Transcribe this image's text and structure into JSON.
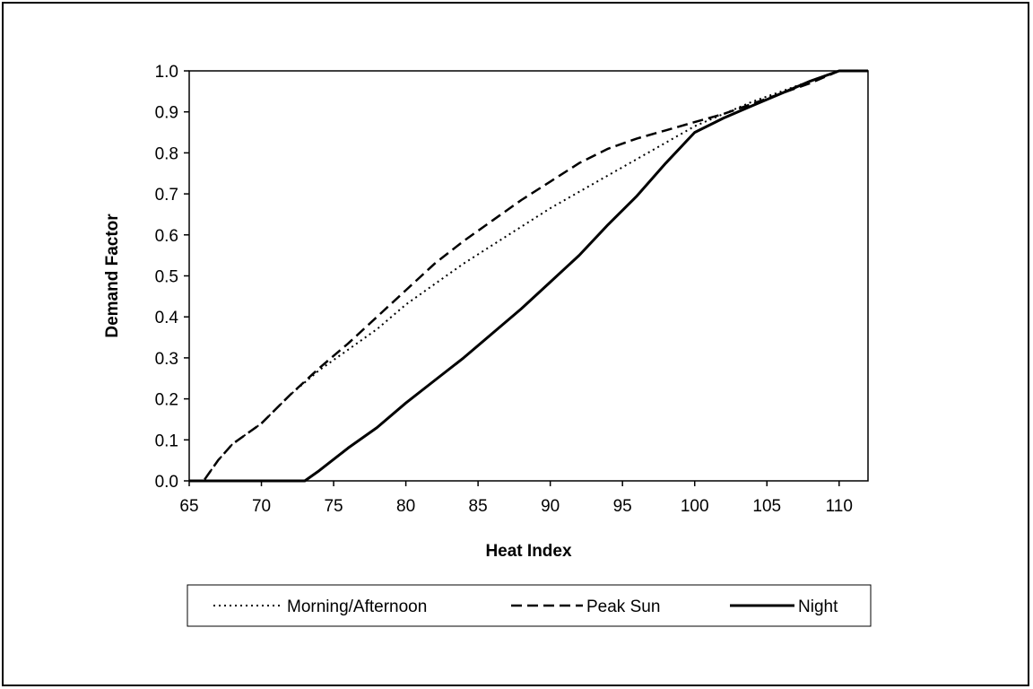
{
  "chart_data": {
    "type": "line",
    "xlabel": "Heat Index",
    "ylabel": "Demand Factor",
    "xlim": [
      65,
      112
    ],
    "ylim": [
      0,
      1.0
    ],
    "x_ticks": [
      "65",
      "70",
      "75",
      "80",
      "85",
      "90",
      "95",
      "100",
      "105",
      "110"
    ],
    "y_ticks": [
      "0.0",
      "0.1",
      "0.2",
      "0.3",
      "0.4",
      "0.5",
      "0.6",
      "0.7",
      "0.8",
      "0.9",
      "1.0"
    ],
    "grid": false,
    "legend_position": "bottom",
    "series": [
      {
        "name": "Morning/Afternoon",
        "line_style": "dotted",
        "color": "#000000",
        "points": [
          [
            65,
            0
          ],
          [
            66,
            0
          ],
          [
            67,
            0.05
          ],
          [
            68,
            0.09
          ],
          [
            70,
            0.14
          ],
          [
            72,
            0.21
          ],
          [
            74,
            0.27
          ],
          [
            76,
            0.32
          ],
          [
            78,
            0.37
          ],
          [
            80,
            0.43
          ],
          [
            82,
            0.48
          ],
          [
            84,
            0.53
          ],
          [
            86,
            0.575
          ],
          [
            88,
            0.62
          ],
          [
            90,
            0.665
          ],
          [
            92,
            0.705
          ],
          [
            94,
            0.745
          ],
          [
            96,
            0.785
          ],
          [
            98,
            0.825
          ],
          [
            100,
            0.865
          ],
          [
            102,
            0.895
          ],
          [
            104,
            0.925
          ],
          [
            106,
            0.95
          ],
          [
            108,
            0.975
          ],
          [
            110,
            1.0
          ],
          [
            112,
            1.0
          ]
        ]
      },
      {
        "name": "Peak Sun",
        "line_style": "dashed",
        "color": "#000000",
        "points": [
          [
            65,
            0
          ],
          [
            66,
            0
          ],
          [
            67,
            0.05
          ],
          [
            68,
            0.09
          ],
          [
            70,
            0.14
          ],
          [
            72,
            0.21
          ],
          [
            74,
            0.275
          ],
          [
            76,
            0.335
          ],
          [
            78,
            0.4
          ],
          [
            80,
            0.465
          ],
          [
            82,
            0.53
          ],
          [
            84,
            0.585
          ],
          [
            86,
            0.635
          ],
          [
            88,
            0.685
          ],
          [
            90,
            0.73
          ],
          [
            92,
            0.775
          ],
          [
            94,
            0.81
          ],
          [
            96,
            0.835
          ],
          [
            98,
            0.855
          ],
          [
            100,
            0.875
          ],
          [
            102,
            0.895
          ],
          [
            104,
            0.92
          ],
          [
            106,
            0.945
          ],
          [
            108,
            0.97
          ],
          [
            110,
            1.0
          ],
          [
            112,
            1.0
          ]
        ]
      },
      {
        "name": "Night",
        "line_style": "solid",
        "color": "#000000",
        "points": [
          [
            65,
            0
          ],
          [
            73,
            0
          ],
          [
            74,
            0.025
          ],
          [
            76,
            0.08
          ],
          [
            78,
            0.13
          ],
          [
            80,
            0.19
          ],
          [
            82,
            0.245
          ],
          [
            84,
            0.3
          ],
          [
            86,
            0.36
          ],
          [
            88,
            0.42
          ],
          [
            90,
            0.485
          ],
          [
            92,
            0.55
          ],
          [
            94,
            0.625
          ],
          [
            96,
            0.695
          ],
          [
            98,
            0.775
          ],
          [
            100,
            0.85
          ],
          [
            102,
            0.885
          ],
          [
            104,
            0.915
          ],
          [
            106,
            0.945
          ],
          [
            108,
            0.975
          ],
          [
            110,
            1.0
          ],
          [
            112,
            1.0
          ]
        ]
      }
    ]
  }
}
